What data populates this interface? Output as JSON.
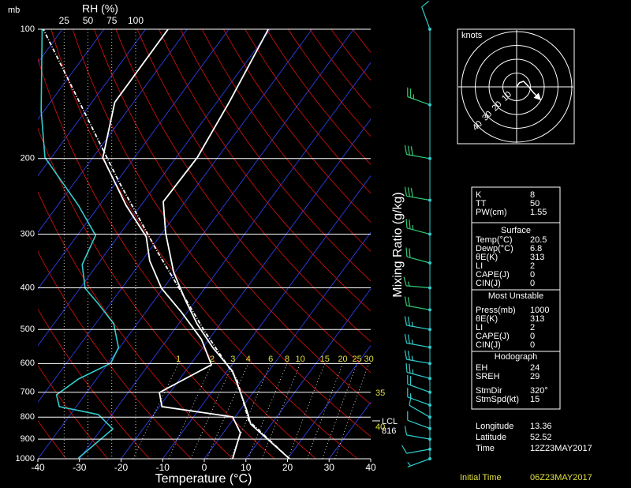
{
  "chart_data": {
    "type": "skewt",
    "y_unit_label": "mb",
    "x_label": "Temperature (°C)",
    "mixing_ratio_label": "Mixing Ratio (g/kg)",
    "rh_label": "RH (%)",
    "xlim": [
      -40,
      40
    ],
    "xticks": [
      -40,
      -30,
      -20,
      -10,
      0,
      10,
      20,
      30,
      40
    ],
    "ylim": [
      1000,
      100
    ],
    "yticks": [
      100,
      200,
      300,
      400,
      500,
      600,
      700,
      800,
      900,
      1000
    ],
    "log_y": true,
    "grid": true,
    "rh_lim": [
      0,
      100
    ],
    "rh_ticks": [
      25,
      50,
      75,
      100
    ],
    "mixing_ratio_ticks": [
      1,
      2,
      3,
      4,
      6,
      8,
      10,
      15,
      20,
      25,
      30
    ],
    "series": [
      {
        "color": "#ffffff",
        "dash": false,
        "pressure": [
          1000,
          830,
          772,
          701,
          625,
          551,
          485,
          427,
          368,
          298,
          252,
          199,
          148,
          100
        ],
        "values": [
          20.5,
          5.0,
          1.7,
          -3.0,
          -8.7,
          -17.6,
          -25.6,
          -32.6,
          -40.3,
          -49.2,
          -55.3,
          -54.9,
          -57.0,
          -60.5
        ]
      },
      {
        "color": "#ffffff",
        "dash": false,
        "pressure": [
          1000,
          870,
          799,
          756,
          701,
          604,
          527,
          455,
          401,
          346,
          304,
          257,
          199,
          148,
          100
        ],
        "values": [
          6.8,
          4.1,
          -0.6,
          -19.4,
          -22.5,
          -14.9,
          -21.8,
          -31.5,
          -40.4,
          -48.1,
          -53.2,
          -63.6,
          -77.6,
          -84.5,
          -84.6
        ]
      },
      {
        "color": "#ffffff",
        "dash": true,
        "pressure": [
          1000,
          816,
          652,
          506,
          331,
          226,
          100
        ],
        "values": [
          20.5,
          4.0,
          -6.3,
          -22.3,
          -47.6,
          -69.6,
          -114.6
        ]
      },
      {
        "color": "#33cccc",
        "dash": false,
        "axis": "rh",
        "pressure": [
          996,
          852,
          789,
          756,
          710,
          652,
          599,
          551,
          485,
          436,
          401,
          353,
          302,
          257,
          222,
          199,
          155,
          100
        ],
        "values": [
          40,
          76,
          61,
          20,
          17,
          40,
          74,
          82,
          77,
          61,
          47,
          44,
          58,
          40,
          20,
          5,
          1,
          2
        ]
      }
    ],
    "lcl_label": "LCL",
    "lcl_pressure": 816,
    "side_labels": [
      "35",
      "40"
    ],
    "winds": {
      "pressure": [
        100,
        150,
        200,
        250,
        300,
        350,
        400,
        450,
        500,
        550,
        600,
        650,
        700,
        750,
        800,
        850,
        900,
        950,
        1000
      ],
      "direction": [
        340,
        290,
        280,
        280,
        285,
        285,
        275,
        280,
        280,
        280,
        280,
        285,
        290,
        290,
        300,
        290,
        280,
        260,
        250
      ],
      "speed": [
        10,
        25,
        30,
        30,
        25,
        20,
        15,
        20,
        25,
        25,
        25,
        25,
        20,
        15,
        10,
        10,
        10,
        10,
        5
      ],
      "colors": [
        "#33cccc",
        "#33cc77",
        "#33cc77",
        "#33cc77",
        "#33cc77",
        "#33cc77",
        "#33cc77",
        "#33cc77",
        "#33cccc",
        "#33cccc",
        "#33cccc",
        "#33cccc",
        "#33cccc",
        "#33cccc",
        "#33cccc",
        "#33cccc",
        "#33cccc",
        "#33cccc",
        "#33cccc"
      ]
    }
  },
  "hodograph": {
    "unit_label": "knots",
    "rings": [
      10,
      20,
      30,
      40
    ],
    "u": [
      0,
      2,
      5,
      8,
      12,
      17
    ],
    "v": [
      0,
      3,
      4,
      1,
      -4,
      -9
    ]
  },
  "indices": {
    "top": [
      [
        "K",
        "8"
      ],
      [
        "TT",
        "50"
      ],
      [
        "PW(cm)",
        "1.55"
      ]
    ],
    "surface": {
      "title": "Surface",
      "rows": [
        [
          "Temp(°C)",
          "20.5"
        ],
        [
          "Dewp(°C)",
          "6.8"
        ],
        [
          "θE(K)",
          "313"
        ],
        [
          "LI",
          "2"
        ],
        [
          "CAPE(J)",
          "0"
        ],
        [
          "CIN(J)",
          "0"
        ]
      ]
    },
    "most_unstable": {
      "title": "Most Unstable",
      "rows": [
        [
          "Press(mb)",
          "1000"
        ],
        [
          "θE(K)",
          "313"
        ],
        [
          "LI",
          "2"
        ],
        [
          "CAPE(J)",
          "0"
        ],
        [
          "CIN(J)",
          "0"
        ]
      ]
    },
    "hodograph": {
      "title": "Hodograph",
      "rows": [
        [
          "EH",
          "24"
        ],
        [
          "SREH",
          "29"
        ],
        [
          "StmDir",
          "320°"
        ],
        [
          "StmSpd(kt)",
          "15"
        ]
      ]
    }
  },
  "location": {
    "rows": [
      [
        "Longitude",
        "13.36"
      ],
      [
        "Latitude",
        "52.52"
      ],
      [
        "Time",
        "12Z23MAY2017"
      ]
    ],
    "initial_time_label": "Initial Time",
    "initial_time": "06Z23MAY2017"
  }
}
